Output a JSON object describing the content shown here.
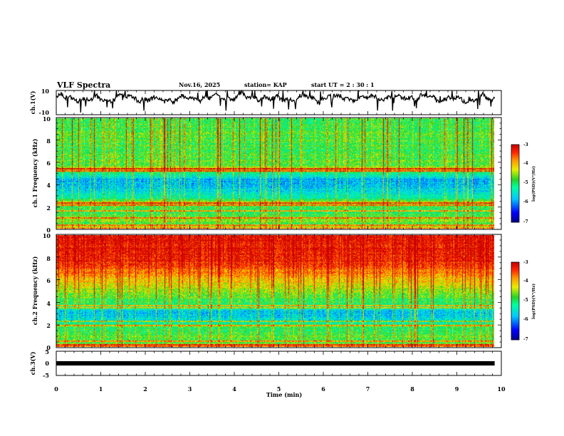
{
  "header": {
    "title": "VLF Spectra",
    "date": "Nov.16, 2025",
    "station": "station= KAP",
    "start": "start  UT  =   2  : 30 : 1"
  },
  "chart_data": [
    {
      "type": "line",
      "name": "ch1-waveform",
      "ylabel": "ch.1(V)",
      "ylim": [
        -10,
        10
      ],
      "ytick_labels": [
        "10",
        "-10"
      ],
      "xlim": [
        0,
        10
      ],
      "x_extent": [
        0,
        9.85
      ],
      "mean_level": 3.5,
      "fluctuation_amplitude": 5
    },
    {
      "type": "heatmap",
      "name": "ch1-spectrogram",
      "ylabel": "ch.1 Frequency (kHz)",
      "ylim": [
        0,
        10
      ],
      "ytick_labels": [
        "0",
        "2",
        "4",
        "6",
        "8",
        "10"
      ],
      "xlim": [
        0,
        10
      ],
      "x_extent": [
        0,
        9.85
      ],
      "freq_profile": [
        [
          0.0,
          -3.6
        ],
        [
          0.4,
          -5.0
        ],
        [
          0.8,
          -4.6
        ],
        [
          1.5,
          -5.0
        ],
        [
          2.0,
          -4.9
        ],
        [
          2.4,
          -4.4
        ],
        [
          2.8,
          -5.3
        ],
        [
          3.5,
          -5.7
        ],
        [
          4.5,
          -5.9
        ],
        [
          5.1,
          -5.1
        ],
        [
          5.4,
          -4.2
        ],
        [
          5.8,
          -4.8
        ],
        [
          7.0,
          -4.9
        ],
        [
          8.0,
          -4.8
        ],
        [
          9.5,
          -4.9
        ],
        [
          10.0,
          -4.9
        ]
      ],
      "line_features_khz": [
        0.3,
        1.0,
        1.6,
        2.1,
        2.3,
        5.2,
        5.4
      ],
      "colorbar": {
        "label": "log(PSD)(V²/Hz)",
        "range": [
          -7,
          -3
        ],
        "tick_labels": [
          "-3",
          "-4",
          "-5",
          "-6",
          "-7"
        ]
      }
    },
    {
      "type": "heatmap",
      "name": "ch2-spectrogram",
      "ylabel": "ch.2 Frequency (kHz)",
      "ylim": [
        0,
        10
      ],
      "ytick_labels": [
        "0",
        "2",
        "4",
        "6",
        "8",
        "10"
      ],
      "xlim": [
        0,
        10
      ],
      "x_extent": [
        0,
        9.85
      ],
      "freq_profile": [
        [
          0.0,
          -3.6
        ],
        [
          0.4,
          -4.9
        ],
        [
          0.9,
          -4.8
        ],
        [
          1.5,
          -5.0
        ],
        [
          2.0,
          -5.0
        ],
        [
          2.4,
          -5.6
        ],
        [
          3.2,
          -5.8
        ],
        [
          3.6,
          -5.3
        ],
        [
          4.0,
          -5.0
        ],
        [
          5.0,
          -4.6
        ],
        [
          6.0,
          -4.1
        ],
        [
          7.0,
          -3.6
        ],
        [
          8.0,
          -3.3
        ],
        [
          10.0,
          -3.2
        ]
      ],
      "line_features_khz": [
        0.2,
        0.5,
        1.9,
        2.3,
        3.5,
        3.7
      ],
      "colorbar": {
        "label": "log(PSD)(V²/Hz)",
        "range": [
          -7,
          -3
        ],
        "tick_labels": [
          "-3",
          "-4",
          "-5",
          "-6",
          "-7"
        ]
      }
    },
    {
      "type": "line",
      "name": "ch3-waveform",
      "ylabel": "ch.3(V)",
      "ylim": [
        -5,
        5
      ],
      "ytick_labels": [
        "5",
        "0",
        "-5"
      ],
      "xlim": [
        0,
        10
      ],
      "x_extent": [
        0,
        9.85
      ],
      "band_center": 0,
      "band_halfwidth": 0.9,
      "xlabel": "Time  (min)",
      "xtick_labels": [
        "0",
        "1",
        "2",
        "3",
        "4",
        "5",
        "6",
        "7",
        "8",
        "9",
        "10"
      ]
    }
  ]
}
